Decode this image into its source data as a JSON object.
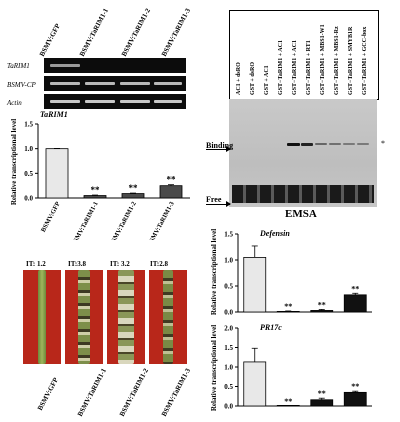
{
  "panelA": {
    "lanes": [
      "BSMV:GFP",
      "BSMV:TaRIM1-1",
      "BSMV:TaRIM1-2",
      "BSMV:TaRIM1-3"
    ],
    "rows": [
      "TaRIM1",
      "BSMV-CP",
      "Actin"
    ],
    "chart_title": "TaRIM1",
    "ylabel": "Relative transcriptional level"
  },
  "panelB": {
    "lanes": [
      "AC1 + dsRO",
      "GST + dsRO",
      "GST + AC1",
      "GST−TaRIM1 + AC1",
      "GST−TaRIM1 + AC1",
      "GST−TaRIM1 + RT1",
      "GST−TaRIM1 + MBS1-W1",
      "GST−TaRIM1 + MBS1-Rz",
      "GST−TaRIM1 + SMYB1R",
      "GST−TaRIM1 + GCC-box"
    ],
    "binding": "Binding",
    "free": "Free",
    "star": "*",
    "title": "EMSA"
  },
  "panelC": {
    "it_labels": [
      "IT: 1.2",
      "IT:3.8",
      "IT: 3.2",
      "IT:2.8"
    ],
    "lanes": [
      "BSMV:GFP",
      "BSMV:TaRIM1-1",
      "BSMV:TaRIM1-2",
      "BSMV:TaRIM1-3"
    ]
  },
  "chart_data": [
    {
      "type": "bar",
      "title": "TaRIM1",
      "ylabel": "Relative transcriptional level",
      "categories": [
        "BSMV:GFP",
        "BSMV:TaRIM1-1",
        "BSMV:TaRIM1-2",
        "BSMV:TaRIM1-3"
      ],
      "values": [
        1.0,
        0.05,
        0.09,
        0.25
      ],
      "errors": [
        0.005,
        0.01,
        0.01,
        0.02
      ],
      "annotations": [
        "",
        "**",
        "**",
        "**"
      ],
      "ylim": [
        0,
        1.5
      ],
      "yticks": [
        "0.0",
        "0.5",
        "1.0",
        "1.5"
      ],
      "colors": [
        "#e8e8e8",
        "#4a4a4a",
        "#4a4a4a",
        "#4a4a4a"
      ]
    },
    {
      "type": "bar",
      "title": "Defensin",
      "ylabel": "Relative transcriptional level",
      "categories": [
        "BSMV:GFP",
        "BSMV:TaRIM1-1",
        "BSMV:TaRIM1-2",
        "BSMV:TaRIM1-3"
      ],
      "values": [
        1.05,
        0.01,
        0.03,
        0.33
      ],
      "errors": [
        0.22,
        0.01,
        0.02,
        0.03
      ],
      "annotations": [
        "",
        "**",
        "**",
        "**"
      ],
      "ylim": [
        0,
        1.5
      ],
      "yticks": [
        "0.0",
        "0.5",
        "1.0",
        "1.5"
      ],
      "colors": [
        "#e8e8e8",
        "#111111",
        "#111111",
        "#111111"
      ]
    },
    {
      "type": "bar",
      "title": "PR17c",
      "ylabel": "Relative transcriptional level",
      "categories": [
        "BSMV:GFP",
        "BSMV:TaRIM1-1",
        "BSMV:TaRIM1-2",
        "BSMV:TaRIM1-3"
      ],
      "values": [
        1.13,
        0.0,
        0.16,
        0.35
      ],
      "errors": [
        0.35,
        0.0,
        0.04,
        0.03
      ],
      "annotations": [
        "",
        "**",
        "**",
        "**"
      ],
      "ylim": [
        0,
        2.0
      ],
      "yticks": [
        "0.0",
        "0.5",
        "1.0",
        "1.5",
        "2.0"
      ],
      "colors": [
        "#e8e8e8",
        "#111111",
        "#111111",
        "#111111"
      ]
    }
  ]
}
